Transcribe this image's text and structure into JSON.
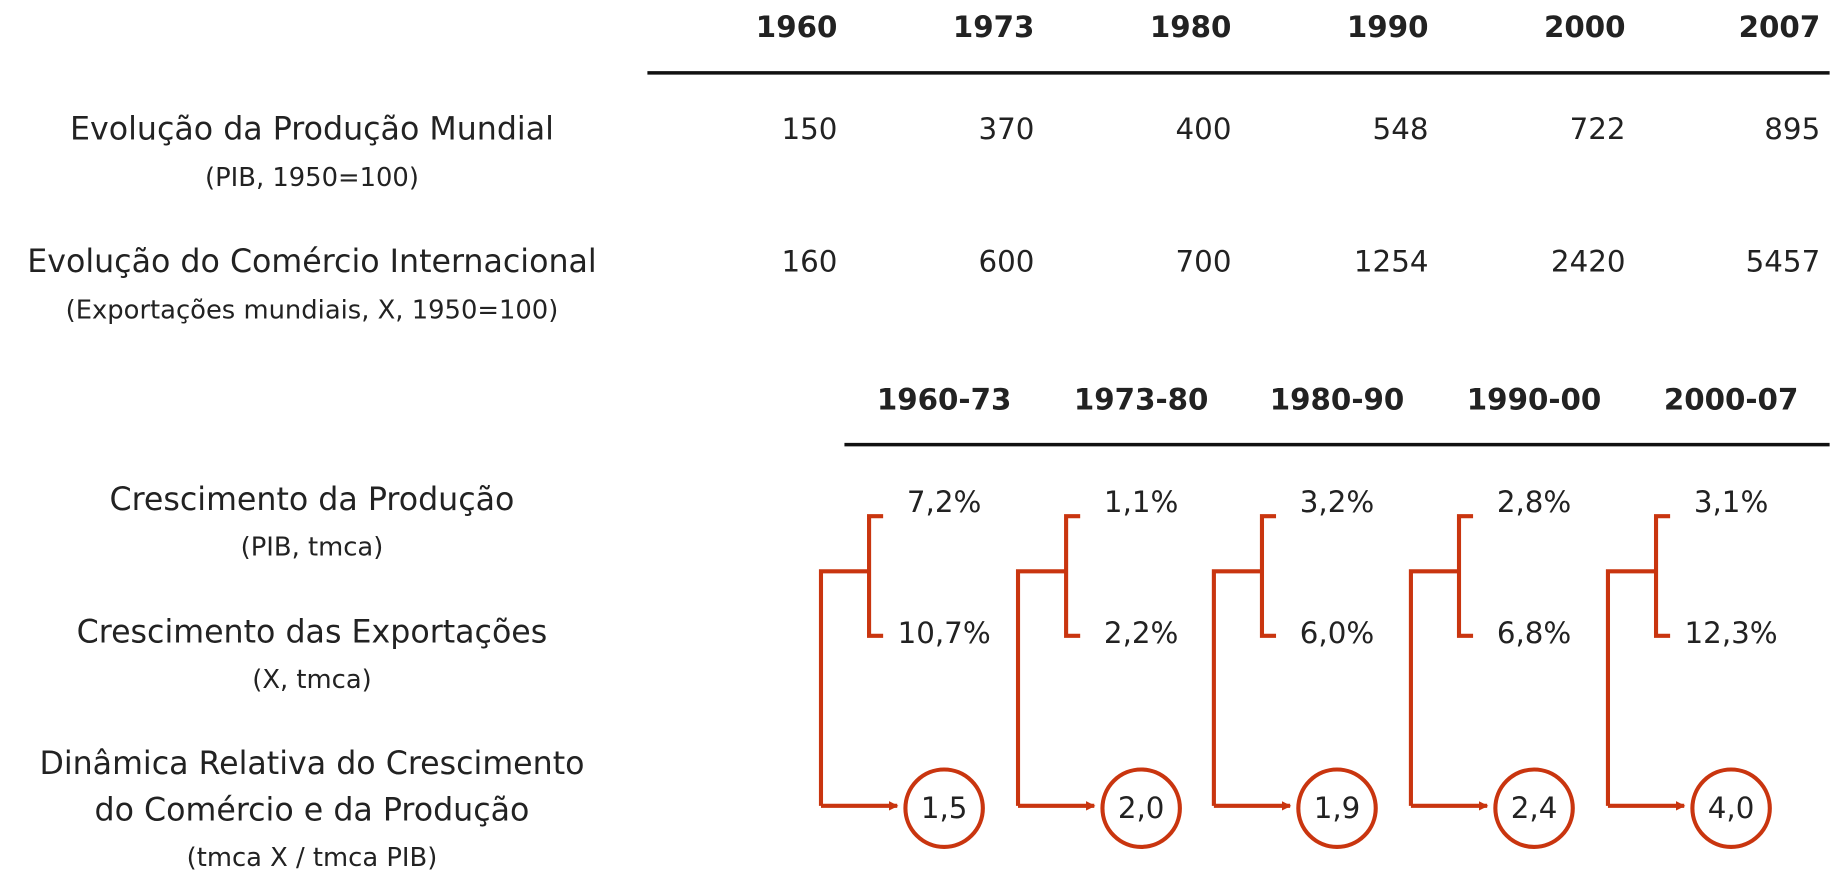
{
  "table": {
    "header": [
      "1960",
      "1973",
      "1980",
      "1990",
      "2000",
      "2007"
    ],
    "rows": [
      {
        "label": "Evolução da Produção Mundial",
        "sublabel": "(PIB, 1950=100)",
        "values": [
          "150",
          "370",
          "400",
          "548",
          "722",
          "895"
        ]
      },
      {
        "label": "Evolução do Comércio Internacional",
        "sublabel": "(Exportações mundiais, X, 1950=100)",
        "values": [
          "160",
          "600",
          "700",
          "1254",
          "2420",
          "5457"
        ]
      }
    ]
  },
  "growth": {
    "header": [
      "1960-73",
      "1973-80",
      "1980-90",
      "1990-00",
      "2000-07"
    ],
    "rows": [
      {
        "label": "Crescimento da Produção",
        "sublabel": "(PIB, tmca)",
        "values": [
          "7,2%",
          "1,1%",
          "3,2%",
          "2,8%",
          "3,1%"
        ]
      },
      {
        "label": "Crescimento das Exportações",
        "sublabel": "(X, tmca)",
        "values": [
          "10,7%",
          "2,2%",
          "6,0%",
          "6,8%",
          "12,3%"
        ]
      },
      {
        "label": "Dinâmica Relativa do Crescimento",
        "label2": "do Comércio e da Produção",
        "sublabel": "(tmca X / tmca PIB)",
        "values": [
          "1,5",
          "2,0",
          "1,9",
          "2,4",
          "4,0"
        ]
      }
    ]
  }
}
